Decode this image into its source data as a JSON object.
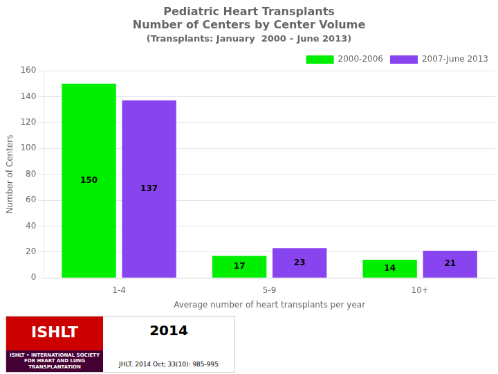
{
  "chart_data": {
    "type": "bar",
    "title": [
      "Pediatric Heart Transplants",
      "Number of Centers by Center Volume"
    ],
    "subtitle": "(Transplants: January  2000 – June 2013)",
    "categories": [
      "1-4",
      "5-9",
      "10+"
    ],
    "series": [
      {
        "name": "2000-2006",
        "color": "#00EE00",
        "values": [
          150,
          17,
          14
        ]
      },
      {
        "name": "2007-June 2013",
        "color": "#8844EE",
        "values": [
          137,
          23,
          21
        ]
      }
    ],
    "x_label": "Average number of heart transplants per year",
    "y_label": "Number of Centers",
    "ylim": [
      0,
      160
    ],
    "yticks": [
      0,
      20,
      40,
      60,
      80,
      100,
      120,
      140,
      160
    ],
    "grid": "y",
    "legend": "upper right",
    "data_labels": true,
    "annotations": [
      "ISHLT",
      "ISHLT • INTERNATIONAL SOCIETY FOR HEART AND LUNG TRANSPLANTATION",
      "2014",
      "JHLT. 2014 Oct; 33(10): 985-995"
    ]
  }
}
